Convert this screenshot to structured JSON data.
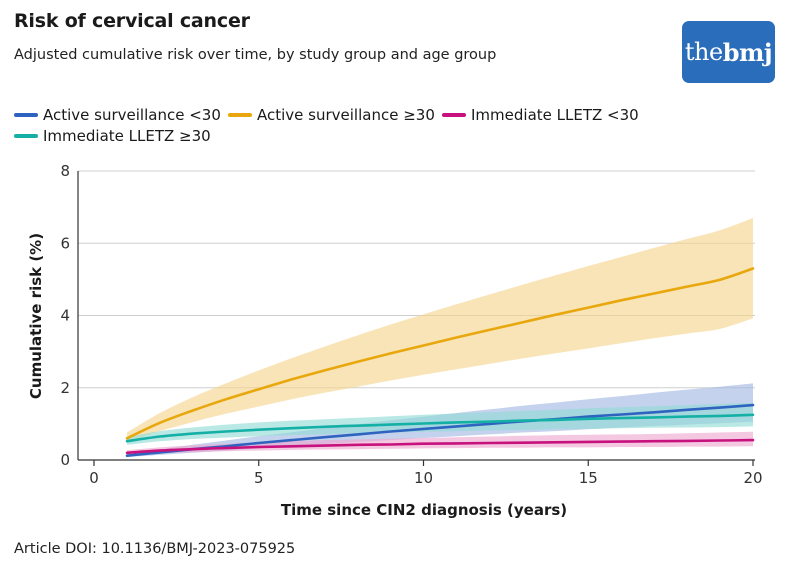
{
  "header": {
    "title": "Risk of cervical cancer",
    "subtitle": "Adjusted cumulative risk over time, by study group and age group"
  },
  "logo": {
    "the": "the",
    "bmj": "bmj"
  },
  "footer": {
    "doi": "Article DOI: 10.1136/BMJ-2023-075925"
  },
  "chart_data": {
    "type": "line",
    "title": "Risk of cervical cancer",
    "subtitle": "Adjusted cumulative risk over time, by study group and age group",
    "xlabel": "Time since CIN2 diagnosis (years)",
    "ylabel": "Cumulative risk (%)",
    "xlim": [
      0,
      20
    ],
    "ylim": [
      0,
      8
    ],
    "xticks": [
      0,
      5,
      10,
      15,
      20
    ],
    "yticks": [
      0,
      2,
      4,
      6,
      8
    ],
    "grid": "horizontal",
    "legend_position": "top",
    "x": [
      1,
      2,
      3,
      4,
      5,
      6,
      7,
      8,
      9,
      10,
      11,
      12,
      13,
      14,
      15,
      16,
      17,
      18,
      19,
      20
    ],
    "series": [
      {
        "name": "Active surveillance <30",
        "color": "#2f63c0",
        "band_color": "#9fb6e2",
        "values": [
          0.12,
          0.21,
          0.3,
          0.38,
          0.47,
          0.55,
          0.63,
          0.71,
          0.79,
          0.86,
          0.93,
          1.0,
          1.07,
          1.13,
          1.2,
          1.26,
          1.32,
          1.39,
          1.45,
          1.52
        ],
        "lower": [
          0.08,
          0.14,
          0.2,
          0.26,
          0.32,
          0.38,
          0.44,
          0.5,
          0.55,
          0.61,
          0.66,
          0.71,
          0.76,
          0.8,
          0.85,
          0.9,
          0.94,
          0.98,
          1.02,
          1.06
        ],
        "upper": [
          0.17,
          0.29,
          0.42,
          0.54,
          0.66,
          0.77,
          0.88,
          0.99,
          1.1,
          1.2,
          1.3,
          1.4,
          1.5,
          1.59,
          1.68,
          1.77,
          1.86,
          1.95,
          2.03,
          2.12
        ]
      },
      {
        "name": "Active surveillance ≥30",
        "color": "#e8a70c",
        "band_color": "#f6d38a",
        "values": [
          0.6,
          1.03,
          1.37,
          1.68,
          1.96,
          2.23,
          2.48,
          2.72,
          2.95,
          3.17,
          3.39,
          3.6,
          3.81,
          4.02,
          4.22,
          4.42,
          4.61,
          4.8,
          4.99,
          5.3
        ],
        "lower": [
          0.48,
          0.8,
          1.05,
          1.28,
          1.48,
          1.68,
          1.86,
          2.03,
          2.2,
          2.36,
          2.51,
          2.66,
          2.81,
          2.95,
          3.09,
          3.23,
          3.37,
          3.5,
          3.63,
          3.92
        ],
        "upper": [
          0.76,
          1.3,
          1.74,
          2.12,
          2.48,
          2.82,
          3.14,
          3.45,
          3.75,
          4.03,
          4.31,
          4.58,
          4.85,
          5.11,
          5.37,
          5.62,
          5.87,
          6.12,
          6.36,
          6.7
        ]
      },
      {
        "name": "Immediate LLETZ <30",
        "color": "#c7127e",
        "band_color": "#eea6cf",
        "values": [
          0.2,
          0.26,
          0.3,
          0.33,
          0.36,
          0.38,
          0.4,
          0.42,
          0.43,
          0.45,
          0.46,
          0.47,
          0.48,
          0.49,
          0.5,
          0.51,
          0.52,
          0.53,
          0.54,
          0.55
        ],
        "lower": [
          0.14,
          0.18,
          0.21,
          0.24,
          0.26,
          0.28,
          0.29,
          0.3,
          0.31,
          0.32,
          0.33,
          0.34,
          0.34,
          0.35,
          0.35,
          0.36,
          0.36,
          0.37,
          0.37,
          0.38
        ],
        "upper": [
          0.27,
          0.35,
          0.41,
          0.45,
          0.49,
          0.52,
          0.55,
          0.57,
          0.59,
          0.61,
          0.63,
          0.65,
          0.67,
          0.69,
          0.7,
          0.71,
          0.72,
          0.74,
          0.76,
          0.78
        ]
      },
      {
        "name": "Immediate LLETZ ≥30",
        "color": "#14b0a6",
        "band_color": "#8fdcd5",
        "values": [
          0.52,
          0.65,
          0.73,
          0.79,
          0.84,
          0.88,
          0.92,
          0.95,
          0.98,
          1.01,
          1.04,
          1.06,
          1.09,
          1.11,
          1.14,
          1.16,
          1.18,
          1.2,
          1.22,
          1.25
        ],
        "lower": [
          0.42,
          0.52,
          0.58,
          0.62,
          0.66,
          0.69,
          0.71,
          0.74,
          0.76,
          0.78,
          0.8,
          0.82,
          0.83,
          0.85,
          0.86,
          0.88,
          0.89,
          0.9,
          0.91,
          0.93
        ],
        "upper": [
          0.64,
          0.8,
          0.9,
          0.98,
          1.04,
          1.09,
          1.13,
          1.17,
          1.21,
          1.25,
          1.29,
          1.32,
          1.36,
          1.39,
          1.43,
          1.46,
          1.49,
          1.52,
          1.55,
          1.58
        ]
      }
    ]
  }
}
